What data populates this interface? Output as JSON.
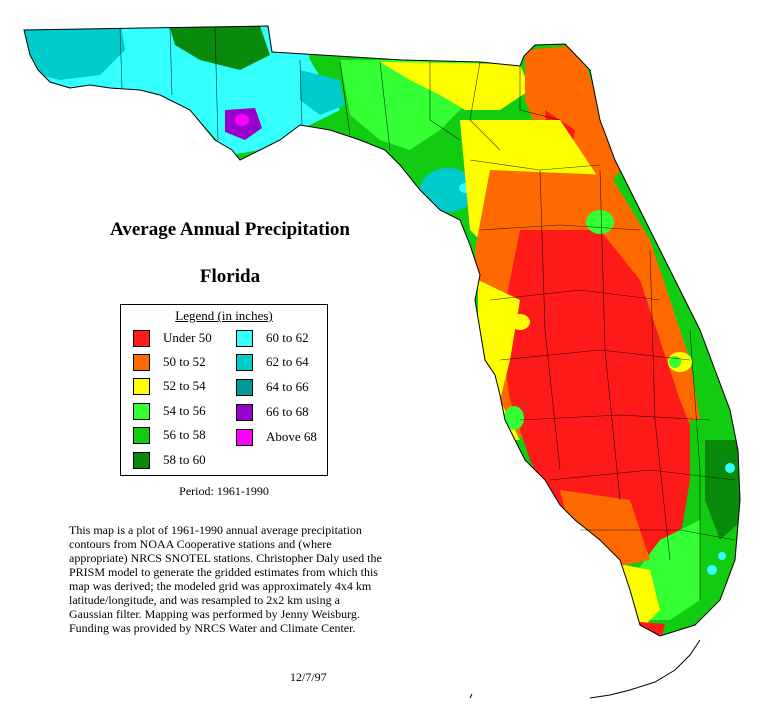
{
  "map": {
    "title": "Average Annual Precipitation",
    "subtitle": "Florida"
  },
  "legend": {
    "title": "Legend (in inches)",
    "items": [
      {
        "label": "Under 50",
        "color": "#ff1a1a"
      },
      {
        "label": "50 to 52",
        "color": "#ff6a00"
      },
      {
        "label": "52 to 54",
        "color": "#ffff00"
      },
      {
        "label": "54 to 56",
        "color": "#33ff33"
      },
      {
        "label": "56 to 58",
        "color": "#11cc11"
      },
      {
        "label": "58 to 60",
        "color": "#0a8a0a"
      },
      {
        "label": "60 to 62",
        "color": "#33ffff"
      },
      {
        "label": "62 to 64",
        "color": "#00cccc"
      },
      {
        "label": "64 to 66",
        "color": "#009999"
      },
      {
        "label": "66 to 68",
        "color": "#9900cc"
      },
      {
        "label": "Above 68",
        "color": "#ff00ff"
      }
    ]
  },
  "period": "Period: 1961-1990",
  "description": {
    "lines": [
      "This map is a plot of 1961-1990 annual average precipitation",
      "contours from NOAA Cooperative stations and (where",
      "appropriate) NRCS SNOTEL stations. Christopher Daly used the",
      "PRISM model to generate the gridded estimates from which this",
      "map was derived; the modeled grid was approximately 4x4 km",
      "latitude/longitude, and was resampled to 2x2 km using a",
      "Gaussian filter. Mapping was performed by Jenny Weisburg.",
      "Funding was provided by NRCS Water and Climate Center."
    ]
  },
  "date": "12/7/97"
}
